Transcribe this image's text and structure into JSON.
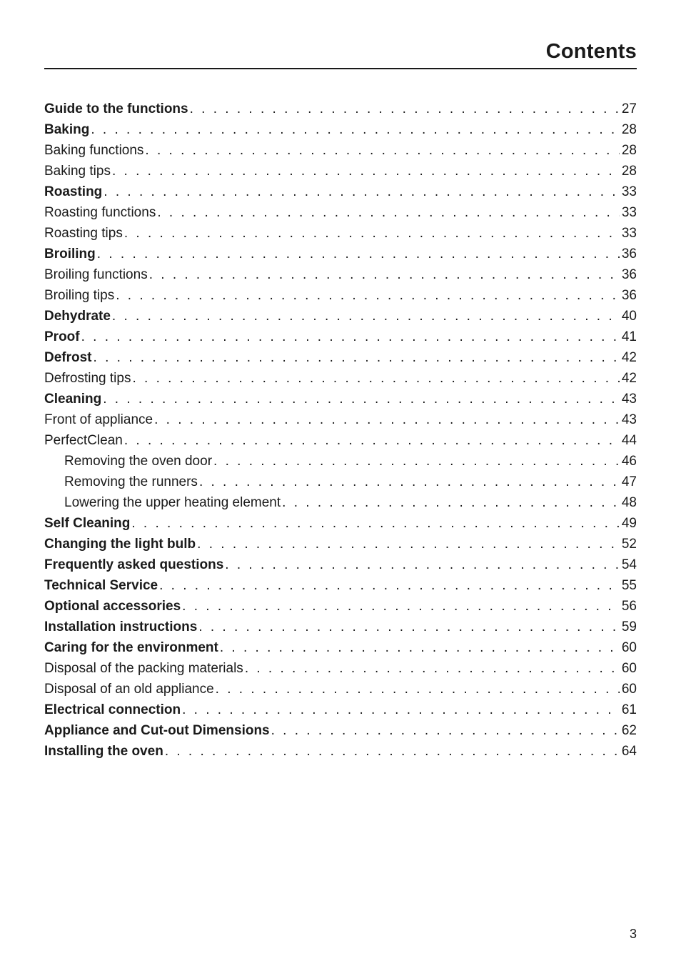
{
  "header": {
    "title": "Contents"
  },
  "footer": {
    "page_number": "3"
  },
  "toc": [
    {
      "label": "Guide to the functions",
      "page": "27",
      "bold": true,
      "indent": 0
    },
    {
      "label": "Baking",
      "page": "28",
      "bold": true,
      "indent": 0
    },
    {
      "label": "Baking functions",
      "page": "28",
      "bold": false,
      "indent": 0
    },
    {
      "label": "Baking tips",
      "page": "28",
      "bold": false,
      "indent": 0
    },
    {
      "label": "Roasting",
      "page": "33",
      "bold": true,
      "indent": 0
    },
    {
      "label": "Roasting functions",
      "page": "33",
      "bold": false,
      "indent": 0
    },
    {
      "label": "Roasting tips",
      "page": "33",
      "bold": false,
      "indent": 0
    },
    {
      "label": "Broiling",
      "page": "36",
      "bold": true,
      "indent": 0
    },
    {
      "label": "Broiling functions",
      "page": "36",
      "bold": false,
      "indent": 0
    },
    {
      "label": "Broiling tips",
      "page": "36",
      "bold": false,
      "indent": 0
    },
    {
      "label": "Dehydrate",
      "page": "40",
      "bold": true,
      "indent": 0
    },
    {
      "label": "Proof",
      "page": "41",
      "bold": true,
      "indent": 0
    },
    {
      "label": "Defrost",
      "page": "42",
      "bold": true,
      "indent": 0
    },
    {
      "label": "Defrosting tips",
      "page": "42",
      "bold": false,
      "indent": 0
    },
    {
      "label": "Cleaning",
      "page": "43",
      "bold": true,
      "indent": 0
    },
    {
      "label": "Front of appliance",
      "page": "43",
      "bold": false,
      "indent": 0
    },
    {
      "label": "PerfectClean",
      "page": "44",
      "bold": false,
      "indent": 0
    },
    {
      "label": "Removing the oven door",
      "page": "46",
      "bold": false,
      "indent": 1
    },
    {
      "label": "Removing the runners",
      "page": "47",
      "bold": false,
      "indent": 1
    },
    {
      "label": "Lowering the upper heating element",
      "page": "48",
      "bold": false,
      "indent": 1
    },
    {
      "label": "Self Cleaning",
      "page": "49",
      "bold": true,
      "indent": 0
    },
    {
      "label": "Changing the light bulb",
      "page": "52",
      "bold": true,
      "indent": 0
    },
    {
      "label": "Frequently asked questions",
      "page": "54",
      "bold": true,
      "indent": 0
    },
    {
      "label": "Technical Service",
      "page": "55",
      "bold": true,
      "indent": 0
    },
    {
      "label": "Optional accessories",
      "page": "56",
      "bold": true,
      "indent": 0
    },
    {
      "label": "Installation instructions",
      "page": "59",
      "bold": true,
      "indent": 0
    },
    {
      "label": "Caring for the environment",
      "page": "60",
      "bold": true,
      "indent": 0
    },
    {
      "label": "Disposal of the packing materials",
      "page": "60",
      "bold": false,
      "indent": 0
    },
    {
      "label": "Disposal of an old appliance",
      "page": "60",
      "bold": false,
      "indent": 0
    },
    {
      "label": "Electrical connection",
      "page": "61",
      "bold": true,
      "indent": 0
    },
    {
      "label": "Appliance and Cut-out Dimensions",
      "page": "62",
      "bold": true,
      "indent": 0
    },
    {
      "label": "Installing the oven",
      "page": "64",
      "bold": true,
      "indent": 0
    }
  ]
}
